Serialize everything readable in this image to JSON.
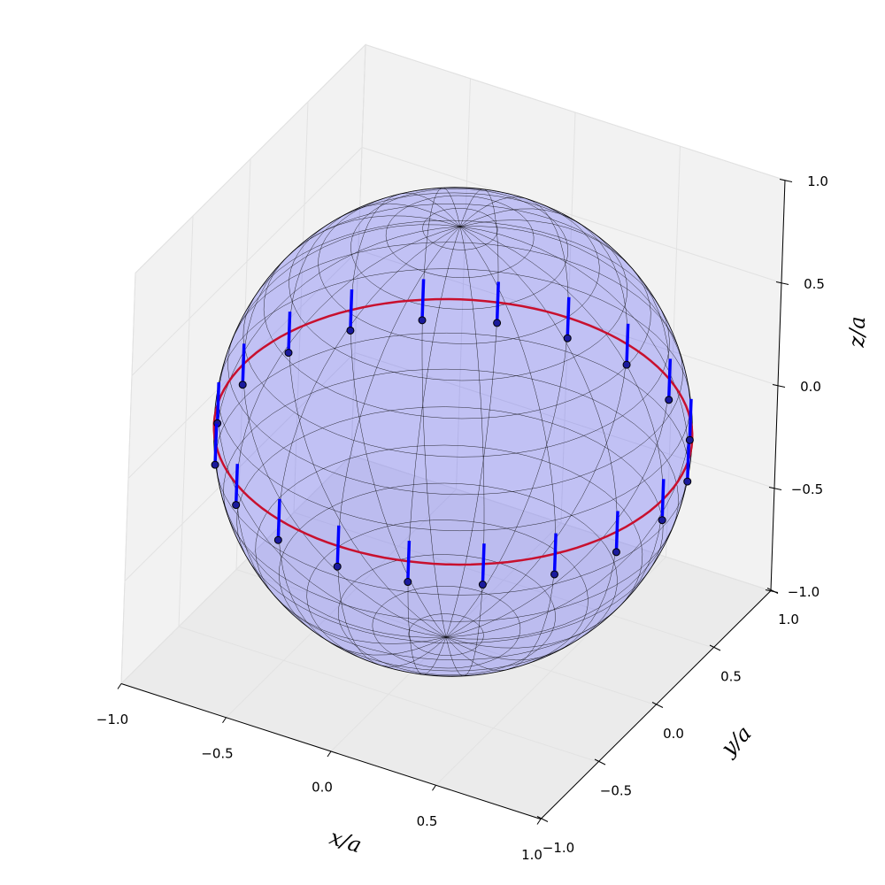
{
  "chart_data": {
    "type": "sphere3d",
    "xlabel": "x/a",
    "ylabel": "y/a",
    "zlabel": "z/a",
    "xlim": [
      -1,
      1
    ],
    "ylim": [
      -1,
      1
    ],
    "zlim": [
      -1,
      1
    ],
    "xticks": [
      {
        "value": -1,
        "label": "−1.0"
      },
      {
        "value": -0.5,
        "label": "−0.5"
      },
      {
        "value": 0,
        "label": "0.0"
      },
      {
        "value": 0.5,
        "label": "0.5"
      },
      {
        "value": 1,
        "label": "1.0"
      }
    ],
    "yticks": [
      {
        "value": -1,
        "label": "−1.0"
      },
      {
        "value": -0.5,
        "label": "−0.5"
      },
      {
        "value": 0,
        "label": "0.0"
      },
      {
        "value": 0.5,
        "label": "0.5"
      },
      {
        "value": 1,
        "label": "1.0"
      }
    ],
    "zticks": [
      {
        "value": -1,
        "label": "−1.0"
      },
      {
        "value": -0.5,
        "label": "−0.5"
      },
      {
        "value": 0,
        "label": "0.0"
      },
      {
        "value": 0.5,
        "label": "0.5"
      },
      {
        "value": 1,
        "label": "1.0"
      }
    ],
    "grid": true,
    "sphere": {
      "radius": 1,
      "color": "#0000ff"
    },
    "ring": {
      "radius": 1,
      "z": 0,
      "color": "#c8102e"
    },
    "points": {
      "color": "#1a1a9c",
      "vector_color": "#0000ff",
      "x": [
        1,
        0.951,
        0.809,
        0.588,
        0.309,
        0,
        -0.309,
        -0.588,
        -0.809,
        -0.951,
        -1,
        -0.951,
        -0.809,
        -0.588,
        -0.309,
        0,
        0.309,
        0.588,
        0.809,
        0.951
      ],
      "y": [
        0,
        0.309,
        0.588,
        0.809,
        0.951,
        1,
        0.951,
        0.809,
        0.588,
        0.309,
        0,
        -0.309,
        -0.588,
        -0.809,
        -0.951,
        -1,
        -0.951,
        -0.809,
        -0.588,
        -0.309
      ],
      "z": [
        -0.1,
        -0.1,
        -0.1,
        -0.1,
        -0.1,
        -0.1,
        -0.1,
        -0.1,
        -0.1,
        -0.1,
        -0.1,
        -0.1,
        -0.1,
        -0.1,
        -0.1,
        -0.1,
        -0.1,
        -0.1,
        -0.1,
        -0.1
      ],
      "dz": [
        0.2,
        0.2,
        0.2,
        0.2,
        0.2,
        0.2,
        0.2,
        0.2,
        0.2,
        0.2,
        0.2,
        0.2,
        0.2,
        0.2,
        0.2,
        0.2,
        0.2,
        0.2,
        0.2,
        0.2
      ]
    }
  }
}
